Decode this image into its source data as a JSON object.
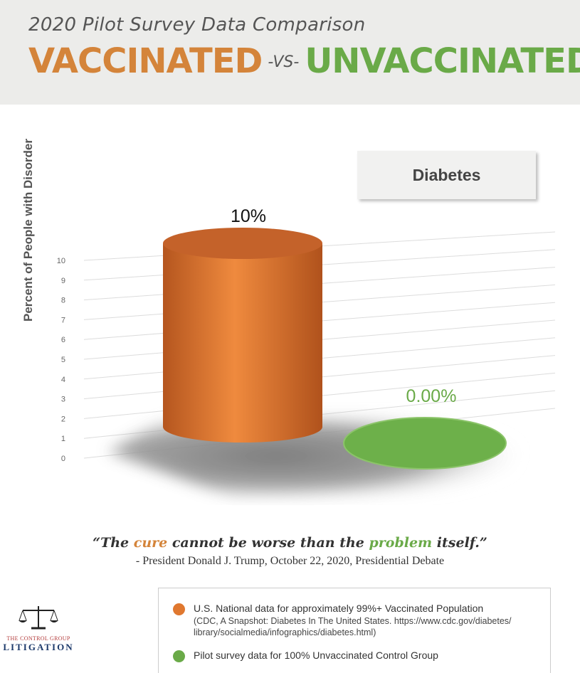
{
  "header": {
    "subtitle": "2020 Pilot Survey Data Comparison",
    "title_left": "VACCINATED",
    "title_vs": "-VS-",
    "title_right": "UNVACCINATED"
  },
  "chart_data": {
    "type": "bar",
    "title": "Diabetes",
    "ylabel": "Percent of People with Disorder",
    "xlabel": "",
    "ylim": [
      0,
      10
    ],
    "yticks": [
      "0",
      "1",
      "2",
      "3",
      "4",
      "5",
      "6",
      "7",
      "8",
      "9",
      "10"
    ],
    "categories": [
      "U.S. National data for approximately 99%+ Vaccinated Population",
      "Pilot survey data for 100% Unvaccinated Control Group"
    ],
    "values": [
      10,
      0
    ],
    "data_labels": [
      "10%",
      "0.00%"
    ],
    "colors": [
      "#e0782f",
      "#6aaa48"
    ],
    "grid": true,
    "legend_position": "bottom"
  },
  "quote": {
    "open": "“The ",
    "cure": "cure",
    "middle": " cannot be worse than the ",
    "problem": "problem",
    "close": " itself.”",
    "attribution": "- President Donald J. Trump, October 22, 2020, Presidential Debate"
  },
  "legend": {
    "item1_main": "U.S. National data for approximately 99%+ Vaccinated Population",
    "item1_sub_line1": "(CDC, A Snapshot: Diabetes In The United States. https://www.cdc.gov/diabetes/",
    "item1_sub_line2": "library/socialmedia/infographics/diabetes.html)",
    "item2_main": "Pilot survey data for 100% Unvaccinated Control Group"
  },
  "logo": {
    "top_text": "THE CONTROL GROUP",
    "bottom_text": "LITIGATION"
  }
}
